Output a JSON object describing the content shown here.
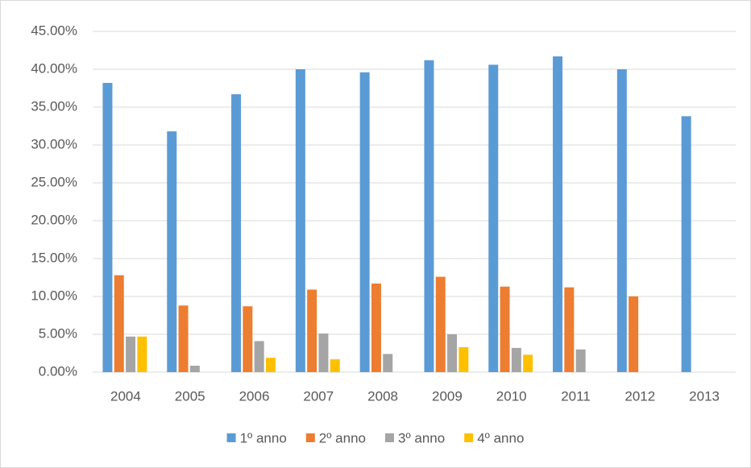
{
  "chart_data": {
    "type": "bar",
    "categories": [
      "2004",
      "2005",
      "2006",
      "2007",
      "2008",
      "2009",
      "2010",
      "2011",
      "2012",
      "2013"
    ],
    "series": [
      {
        "name": "1º anno",
        "color": "#5b9bd5",
        "values": [
          38.2,
          31.8,
          36.7,
          40.0,
          39.6,
          41.2,
          40.6,
          41.7,
          40.0,
          33.8
        ]
      },
      {
        "name": "2º anno",
        "color": "#ed7d31",
        "values": [
          12.8,
          8.8,
          8.7,
          10.9,
          11.7,
          12.6,
          11.3,
          11.2,
          10.0,
          null
        ]
      },
      {
        "name": "3º anno",
        "color": "#a5a5a5",
        "values": [
          4.7,
          0.85,
          4.1,
          5.1,
          2.4,
          5.0,
          3.2,
          3.0,
          null,
          null
        ]
      },
      {
        "name": "4º anno",
        "color": "#ffc000",
        "values": [
          4.7,
          null,
          1.9,
          1.7,
          null,
          3.3,
          2.3,
          null,
          null,
          null
        ]
      }
    ],
    "ylim": [
      0,
      45
    ],
    "yticks": [
      {
        "value": 0,
        "label": "0.00%"
      },
      {
        "value": 5,
        "label": "5.00%"
      },
      {
        "value": 10,
        "label": "10.00%"
      },
      {
        "value": 15,
        "label": "15.00%"
      },
      {
        "value": 20,
        "label": "20.00%"
      },
      {
        "value": 25,
        "label": "25.00%"
      },
      {
        "value": 30,
        "label": "30.00%"
      },
      {
        "value": 35,
        "label": "35.00%"
      },
      {
        "value": 40,
        "label": "40.00%"
      },
      {
        "value": 45,
        "label": "45.00%"
      }
    ],
    "grid": true,
    "legend": "bottom"
  }
}
